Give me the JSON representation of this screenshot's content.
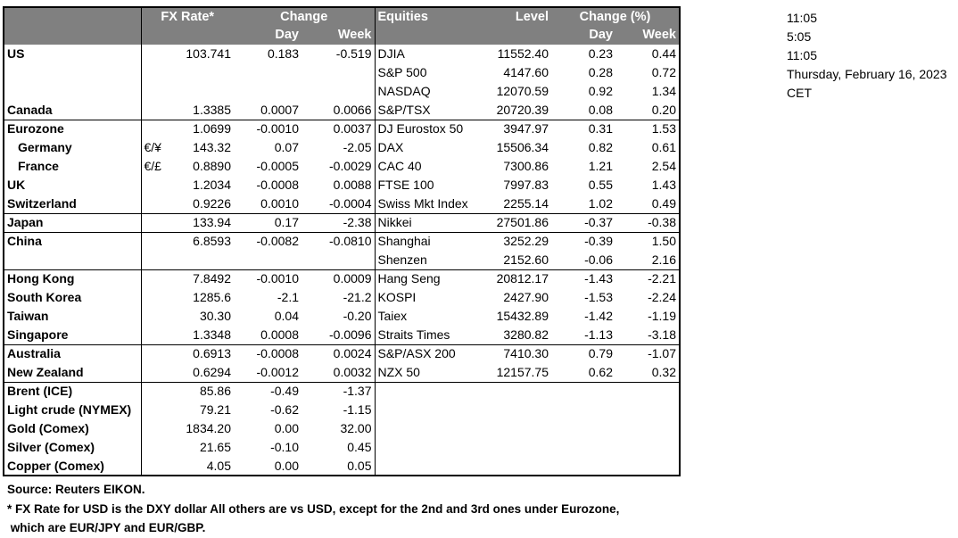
{
  "header": {
    "fx_rate": "FX Rate*",
    "change": "Change",
    "day": "Day",
    "week": "Week",
    "equities": "Equities",
    "level": "Level",
    "change_pct": "Change (%)",
    "eq_day": "Day",
    "eq_week": "Week"
  },
  "rows": [
    {
      "name": "US",
      "sym": "",
      "rate": "103.741",
      "day": "0.183",
      "week": "-0.519",
      "eq": "DJIA",
      "level": "11552.40",
      "eq_day": "0.23",
      "eq_week": "0.44"
    },
    {
      "name": "",
      "sym": "",
      "rate": "",
      "day": "",
      "week": "",
      "eq": "S&P 500",
      "level": "4147.60",
      "eq_day": "0.28",
      "eq_week": "0.72"
    },
    {
      "name": "",
      "sym": "",
      "rate": "",
      "day": "",
      "week": "",
      "eq": "NASDAQ",
      "level": "12070.59",
      "eq_day": "0.92",
      "eq_week": "1.34"
    },
    {
      "name": "Canada",
      "sym": "",
      "rate": "1.3385",
      "day": "0.0007",
      "week": "0.0066",
      "eq": "S&P/TSX",
      "level": "20720.39",
      "eq_day": "0.08",
      "eq_week": "0.20"
    },
    {
      "name": "Eurozone",
      "sym": "",
      "rate": "1.0699",
      "day": "-0.0010",
      "week": "0.0037",
      "eq": "DJ Eurostox 50",
      "level": "3947.97",
      "eq_day": "0.31",
      "eq_week": "1.53"
    },
    {
      "name": "Germany",
      "indent": true,
      "sym": "€/¥",
      "rate": "143.32",
      "day": "0.07",
      "week": "-2.05",
      "eq": "DAX",
      "level": "15506.34",
      "eq_day": "0.82",
      "eq_week": "0.61"
    },
    {
      "name": "France",
      "indent": true,
      "sym": "€/£",
      "rate": "0.8890",
      "day": "-0.0005",
      "week": "-0.0029",
      "eq": "CAC 40",
      "level": "7300.86",
      "eq_day": "1.21",
      "eq_week": "2.54"
    },
    {
      "name": "UK",
      "sym": "",
      "rate": "1.2034",
      "day": "-0.0008",
      "week": "0.0088",
      "eq": "FTSE 100",
      "level": "7997.83",
      "eq_day": "0.55",
      "eq_week": "1.43"
    },
    {
      "name": "Switzerland",
      "sym": "",
      "rate": "0.9226",
      "day": "0.0010",
      "week": "-0.0004",
      "eq": "Swiss Mkt Index",
      "level": "2255.14",
      "eq_day": "1.02",
      "eq_week": "0.49"
    },
    {
      "name": "Japan",
      "sym": "",
      "rate": "133.94",
      "day": "0.17",
      "week": "-2.38",
      "eq": "Nikkei",
      "level": "27501.86",
      "eq_day": "-0.37",
      "eq_week": "-0.38"
    },
    {
      "name": "China",
      "sym": "",
      "rate": "6.8593",
      "day": "-0.0082",
      "week": "-0.0810",
      "eq": "Shanghai",
      "level": "3252.29",
      "eq_day": "-0.39",
      "eq_week": "1.50"
    },
    {
      "name": "",
      "sym": "",
      "rate": "",
      "day": "",
      "week": "",
      "eq": "Shenzen",
      "level": "2152.60",
      "eq_day": "-0.06",
      "eq_week": "2.16"
    },
    {
      "name": "Hong Kong",
      "sym": "",
      "rate": "7.8492",
      "day": "-0.0010",
      "week": "0.0009",
      "eq": "Hang Seng",
      "level": "20812.17",
      "eq_day": "-1.43",
      "eq_week": "-2.21"
    },
    {
      "name": "South Korea",
      "sym": "",
      "rate": "1285.6",
      "day": "-2.1",
      "week": "-21.2",
      "eq": "KOSPI",
      "level": "2427.90",
      "eq_day": "-1.53",
      "eq_week": "-2.24"
    },
    {
      "name": "Taiwan",
      "sym": "",
      "rate": "30.30",
      "day": "0.04",
      "week": "-0.20",
      "eq": "Taiex",
      "level": "15432.89",
      "eq_day": "-1.42",
      "eq_week": "-1.19"
    },
    {
      "name": "Singapore",
      "sym": "",
      "rate": "1.3348",
      "day": "0.0008",
      "week": "-0.0096",
      "eq": "Straits Times",
      "level": "3280.82",
      "eq_day": "-1.13",
      "eq_week": "-3.18"
    },
    {
      "name": "Australia",
      "sym": "",
      "rate": "0.6913",
      "day": "-0.0008",
      "week": "0.0024",
      "eq": "S&P/ASX  200",
      "level": "7410.30",
      "eq_day": "0.79",
      "eq_week": "-1.07"
    },
    {
      "name": "New Zealand",
      "sym": "",
      "rate": "0.6294",
      "day": "-0.0012",
      "week": "0.0032",
      "eq": "NZX 50",
      "level": "12157.75",
      "eq_day": "0.62",
      "eq_week": "0.32"
    },
    {
      "name": "Brent (ICE)",
      "sym": "",
      "rate": "85.86",
      "day": "-0.49",
      "week": "-1.37",
      "eq": "",
      "level": "",
      "eq_day": "",
      "eq_week": ""
    },
    {
      "name": "Light crude (NYMEX)",
      "sym": "",
      "rate": "79.21",
      "day": "-0.62",
      "week": "-1.15",
      "eq": "",
      "level": "",
      "eq_day": "",
      "eq_week": ""
    },
    {
      "name": "Gold (Comex)",
      "sym": "",
      "rate": "1834.20",
      "day": "0.00",
      "week": "32.00",
      "eq": "",
      "level": "",
      "eq_day": "",
      "eq_week": ""
    },
    {
      "name": "Silver (Comex)",
      "sym": "",
      "rate": "21.65",
      "day": "-0.10",
      "week": "0.45",
      "eq": "",
      "level": "",
      "eq_day": "",
      "eq_week": ""
    },
    {
      "name": "Copper (Comex)",
      "sym": "",
      "rate": "4.05",
      "day": "0.00",
      "week": "0.05",
      "eq": "",
      "level": "",
      "eq_day": "",
      "eq_week": ""
    }
  ],
  "footer": {
    "source": "Source:  Reuters EIKON.",
    "note1": "* FX Rate for USD is the DXY dollar  All others are vs USD, except for the 2nd and 3rd ones under Eurozone,",
    "note2": " which are EUR/JPY and EUR/GBP."
  },
  "side": [
    "11:05",
    "5:05",
    "11:05",
    "Thursday, February 16, 2023",
    "CET"
  ]
}
